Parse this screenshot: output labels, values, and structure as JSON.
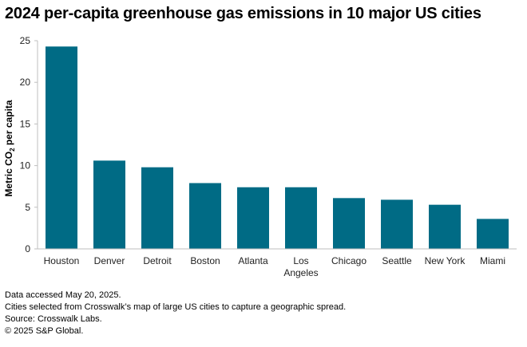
{
  "title": "2024 per-capita greenhouse gas emissions in 10 major US cities",
  "chart_data": {
    "type": "bar",
    "title": "2024 per-capita greenhouse gas emissions in 10 major US cities",
    "xlabel": "",
    "ylabel_prefix": "Metric CO",
    "ylabel_sub": "2",
    "ylabel_suffix": " per capita",
    "ylim": [
      0,
      25
    ],
    "yticks": [
      0,
      5,
      10,
      15,
      20,
      25
    ],
    "categories": [
      [
        "Houston"
      ],
      [
        "Denver"
      ],
      [
        "Detroit"
      ],
      [
        "Boston"
      ],
      [
        "Atlanta"
      ],
      [
        "Los",
        "Angeles"
      ],
      [
        "Chicago"
      ],
      [
        "Seattle"
      ],
      [
        "New York"
      ],
      [
        "Miami"
      ]
    ],
    "values": [
      24.3,
      10.6,
      9.8,
      7.9,
      7.4,
      7.4,
      6.1,
      5.9,
      5.3,
      3.6
    ],
    "bar_color": "#006b85",
    "grid": false
  },
  "notes": [
    "Data accessed May 20, 2025.",
    "Cities selected from Crosswalk’s map of large US cities to capture a geographic spread.",
    "Source: Crosswalk Labs.",
    "© 2025 S&P Global."
  ]
}
